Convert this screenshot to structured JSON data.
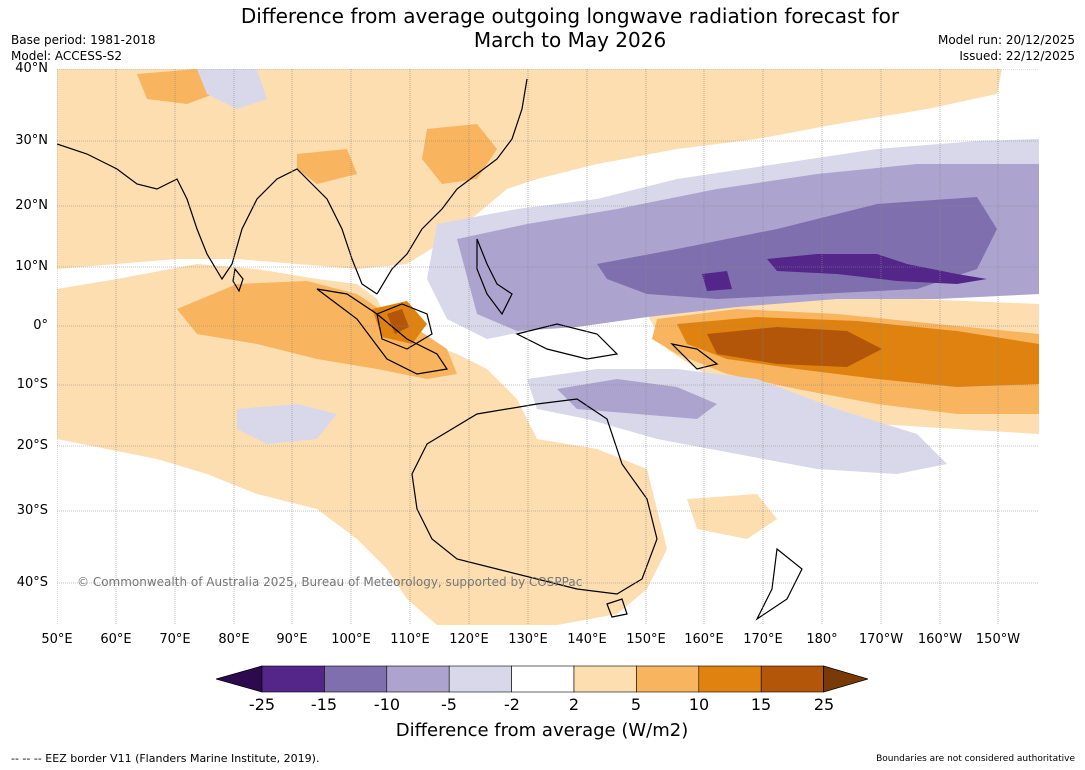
{
  "title": "Difference from average outgoing longwave radiation forecast for\nMarch to May 2026",
  "title_line1": "Difference from average outgoing longwave radiation forecast for",
  "title_line2": "March to May 2026",
  "base_period": "Base period: 1981-2018",
  "model": "Model: ACCESS-S2",
  "model_run": "Model run: 20/12/2025",
  "issued": "Issued: 22/12/2025",
  "map": {
    "lat_labels": [
      "40°N",
      "30°N",
      "20°N",
      "10°N",
      "0°",
      "10°S",
      "20°S",
      "30°S",
      "40°S"
    ],
    "lon_labels": [
      "50°E",
      "60°E",
      "70°E",
      "80°E",
      "90°E",
      "100°E",
      "110°E",
      "120°E",
      "130°E",
      "140°E",
      "150°E",
      "160°E",
      "170°E",
      "180°",
      "170°W",
      "160°W",
      "150°W"
    ],
    "copyright": "© Commonwealth of Australia 2025, Bureau of Meteorology, supported by COSPPac"
  },
  "colorbar": {
    "ticks": [
      "-25",
      "-15",
      "-10",
      "-5",
      "-2",
      "2",
      "5",
      "10",
      "15",
      "25"
    ],
    "colors": [
      "#2d0a4e",
      "#54268a",
      "#7f6fae",
      "#aca4cf",
      "#d9d8ea",
      "#ffffff",
      "#fddeb0",
      "#f8b45f",
      "#e0820f",
      "#b3560a",
      "#7a3a08"
    ],
    "label": "Difference from average (W/m2)"
  },
  "footer": {
    "eez": "--  --  -- EEZ border V11 (Flanders Marine Institute, 2019).",
    "boundaries": "Boundaries are not considered authoritative"
  }
}
